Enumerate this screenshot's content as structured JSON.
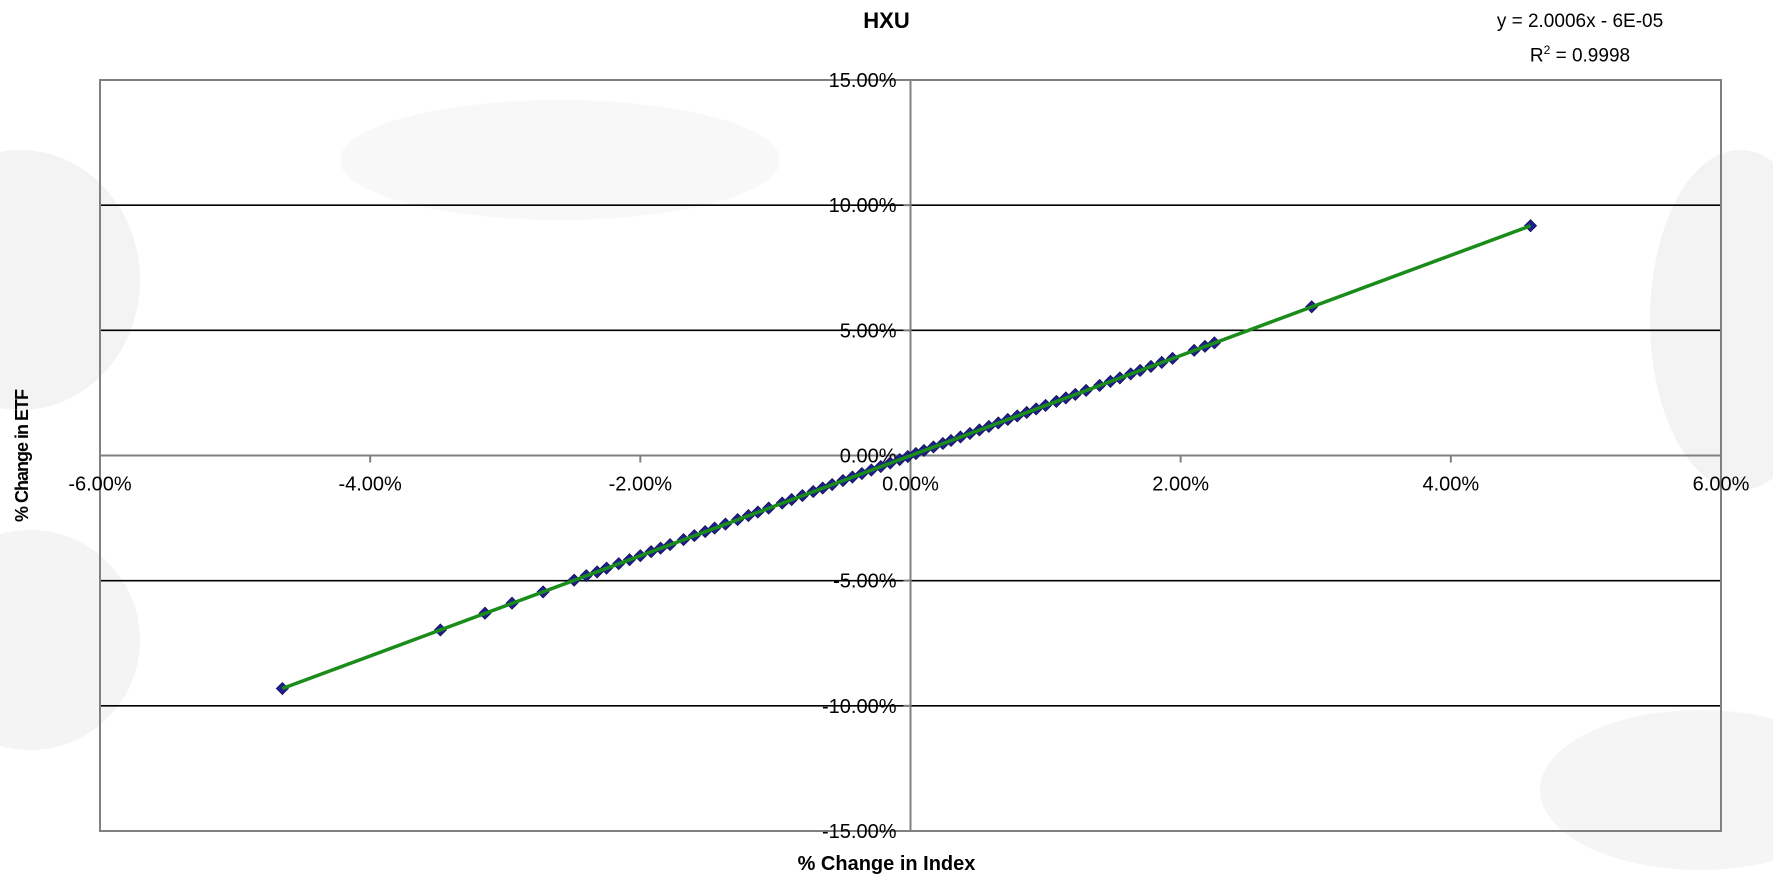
{
  "chart_data": {
    "type": "scatter",
    "title": "HXU",
    "xlabel": "% Change in Index",
    "ylabel": "% Change in ETF",
    "xlim": [
      -0.06,
      0.06
    ],
    "ylim": [
      -0.15,
      0.15
    ],
    "x_ticks": [
      "-6.00%",
      "-4.00%",
      "-2.00%",
      "0.00%",
      "2.00%",
      "4.00%",
      "6.00%"
    ],
    "y_ticks": [
      "15.00%",
      "10.00%",
      "5.00%",
      "0.00%",
      "-5.00%",
      "-10.00%",
      "-15.00%"
    ],
    "grid": "horizontal",
    "trendline": {
      "slope": 2.0006,
      "intercept": -6e-05,
      "x_range": [
        -0.0465,
        0.0459
      ],
      "color": "#1a8c1a",
      "equation_text": "y = 2.0006x - 6E-05",
      "r2_label": "R",
      "r2_sup": "2",
      "r2_value": " = 0.9998"
    },
    "marker_color": "#1f1f8f",
    "points": [
      {
        "x": -0.0465,
        "y": -0.0931
      },
      {
        "x": -0.0348,
        "y": -0.0697
      },
      {
        "x": -0.0315,
        "y": -0.063
      },
      {
        "x": -0.0295,
        "y": -0.059
      },
      {
        "x": -0.0272,
        "y": -0.0545
      },
      {
        "x": -0.0249,
        "y": -0.0498
      },
      {
        "x": -0.024,
        "y": -0.048
      },
      {
        "x": -0.0232,
        "y": -0.0465
      },
      {
        "x": -0.0225,
        "y": -0.045
      },
      {
        "x": -0.0216,
        "y": -0.0432
      },
      {
        "x": -0.0208,
        "y": -0.0416
      },
      {
        "x": -0.02,
        "y": -0.04
      },
      {
        "x": -0.0192,
        "y": -0.0384
      },
      {
        "x": -0.0185,
        "y": -0.037
      },
      {
        "x": -0.0178,
        "y": -0.0356
      },
      {
        "x": -0.0168,
        "y": -0.0336
      },
      {
        "x": -0.016,
        "y": -0.032
      },
      {
        "x": -0.0152,
        "y": -0.0304
      },
      {
        "x": -0.0145,
        "y": -0.029
      },
      {
        "x": -0.0137,
        "y": -0.0274
      },
      {
        "x": -0.0128,
        "y": -0.0256
      },
      {
        "x": -0.012,
        "y": -0.024
      },
      {
        "x": -0.0113,
        "y": -0.0226
      },
      {
        "x": -0.0105,
        "y": -0.021
      },
      {
        "x": -0.0095,
        "y": -0.019
      },
      {
        "x": -0.0088,
        "y": -0.0176
      },
      {
        "x": -0.008,
        "y": -0.016
      },
      {
        "x": -0.0072,
        "y": -0.0144
      },
      {
        "x": -0.0065,
        "y": -0.013
      },
      {
        "x": -0.0058,
        "y": -0.0116
      },
      {
        "x": -0.005,
        "y": -0.01
      },
      {
        "x": -0.0043,
        "y": -0.0086
      },
      {
        "x": -0.0036,
        "y": -0.0072
      },
      {
        "x": -0.0029,
        "y": -0.0058
      },
      {
        "x": -0.0022,
        "y": -0.0044
      },
      {
        "x": -0.0015,
        "y": -0.003
      },
      {
        "x": -0.0008,
        "y": -0.0016
      },
      {
        "x": -0.0002,
        "y": -0.0004
      },
      {
        "x": 0.0004,
        "y": 0.0008
      },
      {
        "x": 0.001,
        "y": 0.002
      },
      {
        "x": 0.0017,
        "y": 0.0034
      },
      {
        "x": 0.0024,
        "y": 0.0048
      },
      {
        "x": 0.003,
        "y": 0.006
      },
      {
        "x": 0.0037,
        "y": 0.0074
      },
      {
        "x": 0.0044,
        "y": 0.0088
      },
      {
        "x": 0.0051,
        "y": 0.0102
      },
      {
        "x": 0.0058,
        "y": 0.0116
      },
      {
        "x": 0.0065,
        "y": 0.013
      },
      {
        "x": 0.0072,
        "y": 0.0144
      },
      {
        "x": 0.0079,
        "y": 0.0158
      },
      {
        "x": 0.0086,
        "y": 0.0172
      },
      {
        "x": 0.0093,
        "y": 0.0186
      },
      {
        "x": 0.01,
        "y": 0.02
      },
      {
        "x": 0.0108,
        "y": 0.0216
      },
      {
        "x": 0.0115,
        "y": 0.023
      },
      {
        "x": 0.0122,
        "y": 0.0244
      },
      {
        "x": 0.013,
        "y": 0.026
      },
      {
        "x": 0.014,
        "y": 0.028
      },
      {
        "x": 0.0148,
        "y": 0.0296
      },
      {
        "x": 0.0155,
        "y": 0.031
      },
      {
        "x": 0.0163,
        "y": 0.0326
      },
      {
        "x": 0.017,
        "y": 0.034
      },
      {
        "x": 0.0178,
        "y": 0.0356
      },
      {
        "x": 0.0186,
        "y": 0.0372
      },
      {
        "x": 0.0194,
        "y": 0.0388
      },
      {
        "x": 0.021,
        "y": 0.042
      },
      {
        "x": 0.0218,
        "y": 0.0436
      },
      {
        "x": 0.0225,
        "y": 0.045
      },
      {
        "x": 0.0297,
        "y": 0.0594
      },
      {
        "x": 0.0459,
        "y": 0.0918
      }
    ]
  }
}
